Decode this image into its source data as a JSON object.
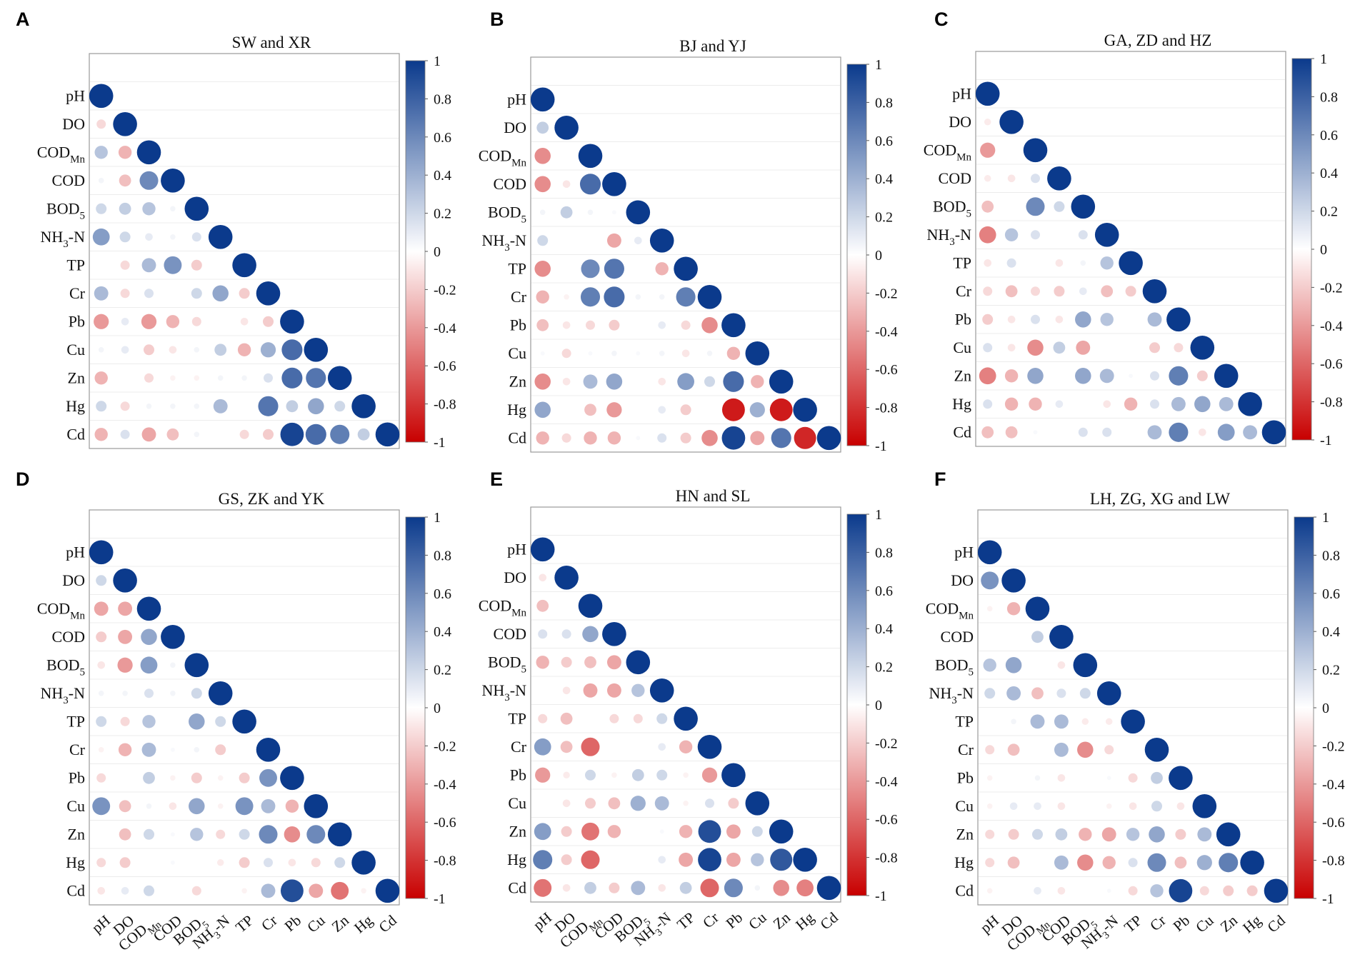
{
  "colors": {
    "positive": "#0b3a8c",
    "zero": "#ffffff",
    "negative": "#c80000"
  },
  "chart_data": [
    {
      "type": "heatmap",
      "panel": "A",
      "title": "SW and XR",
      "value_range": [
        -1,
        1
      ],
      "colorbar_ticks": [
        1,
        0.8,
        0.6,
        0.4,
        0.2,
        0,
        -0.2,
        -0.4,
        -0.6,
        -0.8,
        -1
      ],
      "variables": [
        {
          "name": "pH"
        },
        {
          "name": "DO"
        },
        {
          "name": "COD",
          "sub": "Mn"
        },
        {
          "name": "COD"
        },
        {
          "name": "BOD",
          "sub": "5"
        },
        {
          "name": "NH",
          "sub": "3",
          "after": "-N"
        },
        {
          "name": "TP"
        },
        {
          "name": "Cr"
        },
        {
          "name": "Pb"
        },
        {
          "name": "Cu"
        },
        {
          "name": "Zn"
        },
        {
          "name": "Hg"
        },
        {
          "name": "Cd"
        }
      ],
      "matrix_lower": [
        [
          1
        ],
        [
          -0.15,
          1
        ],
        [
          0.3,
          -0.3,
          1
        ],
        [
          0.05,
          -0.25,
          0.6,
          1
        ],
        [
          0.2,
          0.25,
          0.3,
          0.05,
          1
        ],
        [
          0.5,
          0.2,
          0.1,
          0.05,
          0.15,
          1
        ],
        [
          0,
          -0.15,
          0.35,
          0.55,
          -0.2,
          0,
          1
        ],
        [
          0.35,
          -0.15,
          0.15,
          0,
          0.2,
          0.45,
          -0.2,
          1
        ],
        [
          -0.4,
          0.1,
          -0.4,
          -0.3,
          -0.15,
          0,
          -0.1,
          -0.2,
          1
        ],
        [
          0.05,
          0.1,
          -0.2,
          -0.1,
          0.05,
          0.25,
          -0.3,
          0.4,
          0.75,
          1
        ],
        [
          -0.3,
          0,
          -0.15,
          -0.05,
          -0.05,
          0.05,
          0.05,
          0.15,
          0.75,
          0.7,
          1
        ],
        [
          0.2,
          -0.15,
          0.05,
          0.05,
          0.05,
          0.35,
          0,
          0.7,
          0.25,
          0.45,
          0.2,
          1
        ],
        [
          -0.3,
          0.15,
          -0.35,
          -0.25,
          0.05,
          0,
          -0.15,
          -0.2,
          0.95,
          0.75,
          0.65,
          0.25,
          1
        ]
      ]
    },
    {
      "type": "heatmap",
      "panel": "B",
      "title": "BJ and YJ",
      "value_range": [
        -1,
        1
      ],
      "colorbar_ticks": [
        1,
        0.8,
        0.6,
        0.4,
        0.2,
        0,
        -0.2,
        -0.4,
        -0.6,
        -0.8,
        -1
      ],
      "variables": [
        {
          "name": "pH"
        },
        {
          "name": "DO"
        },
        {
          "name": "COD",
          "sub": "Mn"
        },
        {
          "name": "COD"
        },
        {
          "name": "BOD",
          "sub": "5"
        },
        {
          "name": "NH",
          "sub": "3",
          "after": "-N"
        },
        {
          "name": "TP"
        },
        {
          "name": "Cr"
        },
        {
          "name": "Pb"
        },
        {
          "name": "Cu"
        },
        {
          "name": "Zn"
        },
        {
          "name": "Hg"
        },
        {
          "name": "Cd"
        }
      ],
      "matrix_lower": [
        [
          1
        ],
        [
          0.25,
          1
        ],
        [
          -0.45,
          0,
          1
        ],
        [
          -0.45,
          -0.1,
          0.75,
          1
        ],
        [
          0.05,
          0.25,
          0.05,
          0.03,
          1
        ],
        [
          0.2,
          0,
          0,
          -0.35,
          0.1,
          1
        ],
        [
          -0.45,
          0,
          0.6,
          0.7,
          0,
          -0.3,
          1
        ],
        [
          -0.3,
          -0.05,
          0.65,
          0.75,
          0.05,
          0.05,
          0.65,
          1
        ],
        [
          -0.25,
          -0.1,
          -0.15,
          -0.2,
          0,
          0.1,
          -0.15,
          -0.45,
          1
        ],
        [
          0.03,
          -0.15,
          0.03,
          0.05,
          0.03,
          0.05,
          -0.1,
          0.05,
          -0.3,
          1
        ],
        [
          -0.45,
          -0.1,
          0.35,
          0.45,
          0,
          -0.1,
          0.5,
          0.2,
          0.75,
          -0.3,
          1
        ],
        [
          0.45,
          0,
          -0.25,
          -0.4,
          0,
          0.1,
          -0.2,
          0,
          -0.9,
          0.4,
          -0.9,
          1
        ],
        [
          -0.3,
          -0.15,
          -0.3,
          -0.3,
          0.03,
          0.15,
          -0.2,
          -0.45,
          0.95,
          -0.35,
          0.7,
          -0.85,
          1
        ]
      ]
    },
    {
      "type": "heatmap",
      "panel": "C",
      "title": "GA, ZD and HZ",
      "value_range": [
        -1,
        1
      ],
      "colorbar_ticks": [
        1,
        0.8,
        0.6,
        0.4,
        0.2,
        0,
        -0.2,
        -0.4,
        -0.6,
        -0.8,
        -1
      ],
      "variables": [
        {
          "name": "pH"
        },
        {
          "name": "DO"
        },
        {
          "name": "COD",
          "sub": "Mn"
        },
        {
          "name": "COD"
        },
        {
          "name": "BOD",
          "sub": "5"
        },
        {
          "name": "NH",
          "sub": "3",
          "after": "-N"
        },
        {
          "name": "TP"
        },
        {
          "name": "Cr"
        },
        {
          "name": "Pb"
        },
        {
          "name": "Cu"
        },
        {
          "name": "Zn"
        },
        {
          "name": "Hg"
        },
        {
          "name": "Cd"
        }
      ],
      "matrix_lower": [
        [
          1
        ],
        [
          -0.08,
          1
        ],
        [
          -0.4,
          0,
          1
        ],
        [
          -0.08,
          -0.1,
          0.15,
          1
        ],
        [
          -0.25,
          0,
          0.6,
          0.2,
          1
        ],
        [
          -0.5,
          0.3,
          0.15,
          0,
          0.15,
          1
        ],
        [
          -0.1,
          0.15,
          0,
          -0.1,
          0.05,
          0.3,
          1
        ],
        [
          -0.15,
          -0.25,
          -0.15,
          -0.2,
          0.1,
          -0.25,
          -0.2,
          1
        ],
        [
          -0.2,
          -0.1,
          0.15,
          -0.1,
          0.45,
          0.3,
          0,
          0.35,
          1
        ],
        [
          0.15,
          -0.1,
          -0.45,
          0.25,
          -0.35,
          0,
          0,
          -0.2,
          -0.15,
          1
        ],
        [
          -0.5,
          -0.3,
          0.45,
          0,
          0.45,
          0.35,
          0.03,
          0.15,
          0.65,
          -0.2,
          1
        ],
        [
          0.15,
          -0.3,
          -0.3,
          0.1,
          0,
          -0.1,
          -0.3,
          0.15,
          0.35,
          0.45,
          0.35,
          1
        ],
        [
          -0.25,
          -0.25,
          0.03,
          0,
          0.15,
          0.15,
          0,
          0.35,
          0.65,
          -0.1,
          0.5,
          0.35,
          1
        ]
      ]
    },
    {
      "type": "heatmap",
      "panel": "D",
      "title": "GS, ZK and YK",
      "value_range": [
        -1,
        1
      ],
      "colorbar_ticks": [
        1,
        0.8,
        0.6,
        0.4,
        0.2,
        0,
        -0.2,
        -0.4,
        -0.6,
        -0.8,
        -1
      ],
      "variables": [
        {
          "name": "pH"
        },
        {
          "name": "DO"
        },
        {
          "name": "COD",
          "sub": "Mn"
        },
        {
          "name": "COD"
        },
        {
          "name": "BOD",
          "sub": "5"
        },
        {
          "name": "NH",
          "sub": "3",
          "after": "-N"
        },
        {
          "name": "TP"
        },
        {
          "name": "Cr"
        },
        {
          "name": "Pb"
        },
        {
          "name": "Cu"
        },
        {
          "name": "Zn"
        },
        {
          "name": "Hg"
        },
        {
          "name": "Cd"
        }
      ],
      "matrix_lower": [
        [
          1
        ],
        [
          0.2,
          1
        ],
        [
          -0.35,
          -0.35,
          1
        ],
        [
          -0.2,
          -0.35,
          0.45,
          1
        ],
        [
          -0.1,
          -0.4,
          0.5,
          0.05,
          1
        ],
        [
          0.05,
          0.05,
          0.15,
          0.05,
          0.2,
          1
        ],
        [
          0.2,
          -0.15,
          0.3,
          0,
          0.45,
          0.2,
          1
        ],
        [
          -0.05,
          -0.3,
          0.35,
          0.03,
          0.05,
          -0.2,
          0,
          1
        ],
        [
          -0.15,
          0,
          0.25,
          -0.05,
          -0.2,
          -0.05,
          -0.2,
          0.55,
          1
        ],
        [
          0.55,
          -0.25,
          0.05,
          -0.1,
          0.45,
          -0.05,
          0.55,
          0.35,
          -0.3,
          1
        ],
        [
          0,
          -0.25,
          0.2,
          0.03,
          0.3,
          -0.15,
          0.2,
          0.6,
          -0.45,
          0.6,
          1
        ],
        [
          -0.15,
          -0.2,
          0,
          0.03,
          0,
          -0.08,
          -0.2,
          0.15,
          -0.1,
          -0.15,
          0.2,
          1
        ],
        [
          -0.1,
          0.1,
          0.2,
          0,
          -0.15,
          0,
          -0.05,
          0.35,
          0.9,
          -0.35,
          -0.55,
          -0.05,
          1
        ]
      ]
    },
    {
      "type": "heatmap",
      "panel": "E",
      "title": "HN and SL",
      "value_range": [
        -1,
        1
      ],
      "colorbar_ticks": [
        1,
        0.8,
        0.6,
        0.4,
        0.2,
        0,
        -0.2,
        -0.4,
        -0.6,
        -0.8,
        -1
      ],
      "variables": [
        {
          "name": "pH"
        },
        {
          "name": "DO"
        },
        {
          "name": "COD",
          "sub": "Mn"
        },
        {
          "name": "COD"
        },
        {
          "name": "BOD",
          "sub": "5"
        },
        {
          "name": "NH",
          "sub": "3",
          "after": "-N"
        },
        {
          "name": "TP"
        },
        {
          "name": "Cr"
        },
        {
          "name": "Pb"
        },
        {
          "name": "Cu"
        },
        {
          "name": "Zn"
        },
        {
          "name": "Hg"
        },
        {
          "name": "Cd"
        }
      ],
      "matrix_lower": [
        [
          1
        ],
        [
          -0.1,
          1
        ],
        [
          -0.25,
          0,
          1
        ],
        [
          0.15,
          0.15,
          0.45,
          1
        ],
        [
          -0.3,
          -0.2,
          -0.25,
          -0.35,
          1
        ],
        [
          0,
          -0.1,
          -0.35,
          -0.35,
          0.3,
          1
        ],
        [
          -0.15,
          -0.25,
          0,
          -0.15,
          -0.15,
          0.2,
          1
        ],
        [
          0.5,
          -0.25,
          -0.6,
          0,
          0,
          0.1,
          -0.3,
          1
        ],
        [
          -0.4,
          -0.08,
          0.2,
          -0.05,
          0.25,
          0.2,
          -0.05,
          -0.4,
          1
        ],
        [
          0,
          -0.1,
          -0.2,
          -0.25,
          0.4,
          0.35,
          -0.05,
          0.15,
          -0.2,
          1
        ],
        [
          0.5,
          -0.2,
          -0.55,
          -0.3,
          0,
          0.03,
          -0.3,
          0.9,
          -0.35,
          0.2,
          1
        ],
        [
          0.65,
          -0.2,
          -0.6,
          0,
          0,
          0.1,
          -0.35,
          0.95,
          -0.35,
          0.3,
          0.85,
          1
        ],
        [
          -0.55,
          -0.1,
          0.25,
          -0.2,
          0.35,
          -0.1,
          0.25,
          -0.6,
          0.6,
          0.05,
          -0.45,
          -0.5,
          1
        ]
      ]
    },
    {
      "type": "heatmap",
      "panel": "F",
      "title": "LH, ZG, XG and LW",
      "value_range": [
        -1,
        1
      ],
      "colorbar_ticks": [
        1,
        0.8,
        0.6,
        0.4,
        0.2,
        0,
        -0.2,
        -0.4,
        -0.6,
        -0.8,
        -1
      ],
      "variables": [
        {
          "name": "pH"
        },
        {
          "name": "DO"
        },
        {
          "name": "COD",
          "sub": "Mn"
        },
        {
          "name": "COD"
        },
        {
          "name": "BOD",
          "sub": "5"
        },
        {
          "name": "NH",
          "sub": "3",
          "after": "-N"
        },
        {
          "name": "TP"
        },
        {
          "name": "Cr"
        },
        {
          "name": "Pb"
        },
        {
          "name": "Cu"
        },
        {
          "name": "Zn"
        },
        {
          "name": "Hg"
        },
        {
          "name": "Cd"
        }
      ],
      "matrix_lower": [
        [
          1
        ],
        [
          0.55,
          1
        ],
        [
          -0.05,
          -0.3,
          1
        ],
        [
          0,
          0,
          0.25,
          1
        ],
        [
          0.3,
          0.45,
          0,
          -0.1,
          1
        ],
        [
          0.2,
          0.35,
          -0.25,
          0.15,
          0.2,
          1
        ],
        [
          0,
          0.05,
          0.35,
          0.35,
          -0.08,
          -0.08,
          1
        ],
        [
          -0.15,
          -0.25,
          0,
          0.35,
          -0.45,
          -0.15,
          0,
          1
        ],
        [
          -0.05,
          0,
          0.05,
          -0.1,
          0,
          0.03,
          -0.15,
          0.25,
          1
        ],
        [
          -0.05,
          0.1,
          0.1,
          -0.1,
          0,
          -0.05,
          -0.1,
          0.2,
          -0.1,
          1
        ],
        [
          -0.15,
          -0.2,
          0.2,
          0.25,
          -0.3,
          -0.35,
          0.3,
          0.45,
          -0.2,
          0.35,
          1
        ],
        [
          -0.15,
          -0.25,
          0,
          0.35,
          -0.45,
          -0.3,
          0.15,
          0.6,
          -0.25,
          0.4,
          0.65,
          1
        ],
        [
          -0.05,
          0,
          0.1,
          -0.1,
          0,
          0.03,
          -0.15,
          0.3,
          0.95,
          -0.15,
          -0.2,
          -0.2,
          1
        ]
      ]
    }
  ]
}
